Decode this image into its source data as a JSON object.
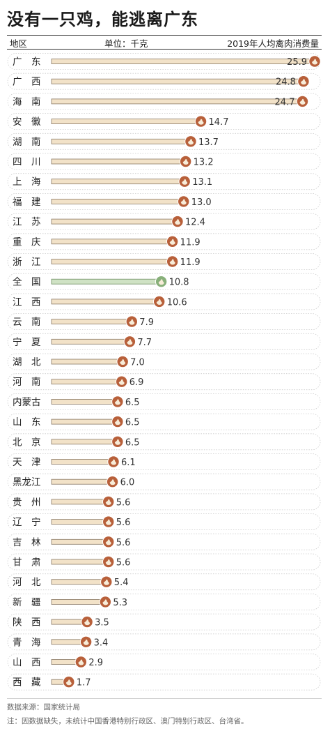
{
  "title": "没有一只鸡，能逃离广东",
  "header": {
    "region_label": "地区",
    "unit_label": "单位：千克",
    "metric_label": "2019年人均禽肉消费量"
  },
  "colors": {
    "bar_fill": "#f2e2c8",
    "bar_stroke": "#8a7a66",
    "highlight_fill": "#cfe2c4",
    "highlight_stroke": "#6f8f63",
    "marker": "#b8603a",
    "marker_highlight": "#88b07a",
    "row_outline": "#cccccc"
  },
  "chart_data": {
    "type": "bar",
    "orientation": "horizontal",
    "categories": [
      "广东",
      "广西",
      "海南",
      "安徽",
      "湖南",
      "四川",
      "上海",
      "福建",
      "江苏",
      "重庆",
      "浙江",
      "全国",
      "江西",
      "云南",
      "宁夏",
      "湖北",
      "河南",
      "内蒙古",
      "山东",
      "北京",
      "天津",
      "黑龙江",
      "贵州",
      "辽宁",
      "吉林",
      "甘肃",
      "河北",
      "新疆",
      "陕西",
      "青海",
      "山西",
      "西藏"
    ],
    "category_labels": [
      "广　东",
      "广　西",
      "海　南",
      "安　徽",
      "湖　南",
      "四　川",
      "上　海",
      "福　建",
      "江　苏",
      "重　庆",
      "浙　江",
      "全　国",
      "江　西",
      "云　南",
      "宁　夏",
      "湖　北",
      "河　南",
      "内蒙古",
      "山　东",
      "北　京",
      "天　津",
      "黑龙江",
      "贵　州",
      "辽　宁",
      "吉　林",
      "甘　肃",
      "河　北",
      "新　疆",
      "陕　西",
      "青　海",
      "山　西",
      "西　藏"
    ],
    "values": [
      25.9,
      24.8,
      24.7,
      14.7,
      13.7,
      13.2,
      13.1,
      13.0,
      12.4,
      11.9,
      11.9,
      10.8,
      10.6,
      7.9,
      7.7,
      7.0,
      6.9,
      6.5,
      6.5,
      6.5,
      6.1,
      6.0,
      5.6,
      5.6,
      5.6,
      5.6,
      5.4,
      5.3,
      3.5,
      3.4,
      2.9,
      1.7
    ],
    "value_labels": [
      "25.9",
      "24.8",
      "24.7",
      "14.7",
      "13.7",
      "13.2",
      "13.1",
      "13.0",
      "12.4",
      "11.9",
      "11.9",
      "10.8",
      "10.6",
      "7.9",
      "7.7",
      "7.0",
      "6.9",
      "6.5",
      "6.5",
      "6.5",
      "6.1",
      "6.0",
      "5.6",
      "5.6",
      "5.6",
      "5.6",
      "5.4",
      "5.3",
      "3.5",
      "3.4",
      "2.9",
      "1.7"
    ],
    "highlight": "全国",
    "xlim": [
      0,
      25.9
    ],
    "grid": false,
    "legend": "none"
  },
  "footer": {
    "source": "数据来源：国家统计局",
    "note": "注：因数据缺失，未统计中国香港特别行政区、澳门特别行政区、台湾省。"
  }
}
